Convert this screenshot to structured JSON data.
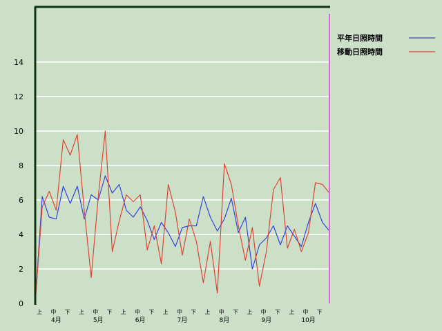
{
  "chart_data": {
    "type": "line",
    "ylim": [
      0,
      16
    ],
    "yticks": [
      0,
      2,
      4,
      6,
      8,
      10,
      12,
      14
    ],
    "grid": true,
    "legend": "top-right",
    "decade_labels": [
      "上",
      "中",
      "下"
    ],
    "months": [
      "4月",
      "5月",
      "6月",
      "7月",
      "8月",
      "9月",
      "10月"
    ],
    "x": [
      "4/1",
      "4/6",
      "4/11",
      "4/16",
      "4/21",
      "4/26",
      "5/1",
      "5/6",
      "5/11",
      "5/16",
      "5/21",
      "5/26",
      "6/1",
      "6/6",
      "6/11",
      "6/16",
      "6/21",
      "6/26",
      "7/1",
      "7/6",
      "7/11",
      "7/16",
      "7/21",
      "7/26",
      "8/1",
      "8/6",
      "8/11",
      "8/16",
      "8/21",
      "8/26",
      "9/1",
      "9/6",
      "9/11",
      "9/16",
      "9/21",
      "9/26",
      "10/1",
      "10/6",
      "10/11",
      "10/16",
      "10/21",
      "10/26",
      "10/31"
    ],
    "series": [
      {
        "name": "平年日照時間",
        "color": "#3344dd",
        "values": [
          0,
          6.2,
          5.0,
          4.9,
          6.8,
          5.8,
          6.8,
          4.9,
          6.3,
          6.0,
          7.4,
          6.4,
          6.9,
          5.4,
          5.0,
          5.6,
          4.8,
          3.7,
          4.7,
          4.1,
          3.3,
          4.4,
          4.5,
          4.5,
          6.2,
          5.0,
          4.2,
          4.9,
          6.1,
          4.1,
          5.0,
          2.0,
          3.4,
          3.8,
          4.5,
          3.4,
          4.5,
          3.9,
          3.3,
          4.7,
          5.8,
          4.7,
          4.2
        ]
      },
      {
        "name": "移動日照時間",
        "color": "#dd4433",
        "values": [
          0,
          5.6,
          6.5,
          5.4,
          9.5,
          8.6,
          9.8,
          5.4,
          1.5,
          6.2,
          10.0,
          3.0,
          4.8,
          6.3,
          5.9,
          6.3,
          3.1,
          4.5,
          2.3,
          6.9,
          5.3,
          2.8,
          4.9,
          3.6,
          1.2,
          3.6,
          0.6,
          8.1,
          6.9,
          4.5,
          2.5,
          4.4,
          1.0,
          3.0,
          6.6,
          7.3,
          3.2,
          4.3,
          3.0,
          4.1,
          7.0,
          6.9,
          6.4
        ]
      }
    ]
  }
}
